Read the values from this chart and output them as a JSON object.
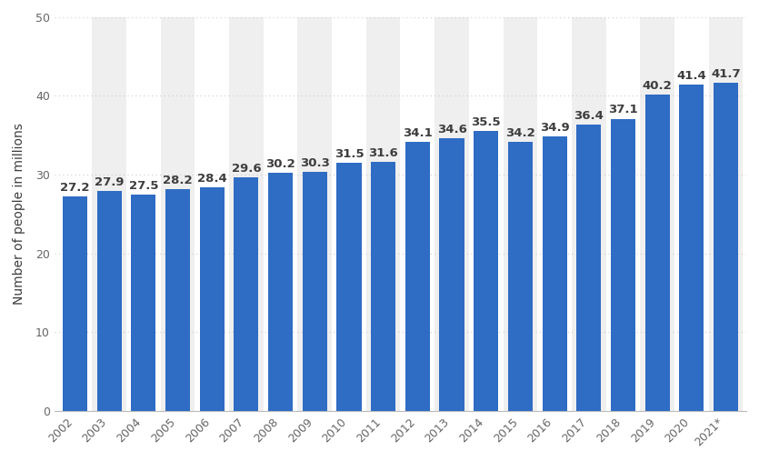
{
  "years": [
    "2002",
    "2003",
    "2004",
    "2005",
    "2006",
    "2007",
    "2008",
    "2009",
    "2010",
    "2011",
    "2012",
    "2013",
    "2014",
    "2015",
    "2016",
    "2017",
    "2018",
    "2019",
    "2020",
    "2021*"
  ],
  "values": [
    27.2,
    27.9,
    27.5,
    28.2,
    28.4,
    29.6,
    30.2,
    30.3,
    31.5,
    31.6,
    34.1,
    34.6,
    35.5,
    34.2,
    34.9,
    36.4,
    37.1,
    40.2,
    41.4,
    41.7
  ],
  "bar_color": "#2f6cc4",
  "background_color": "#ffffff",
  "plot_bg_color": "#ffffff",
  "band_color": "#efefef",
  "ylabel": "Number of people in millions",
  "ylim": [
    0,
    50
  ],
  "yticks": [
    0,
    10,
    20,
    30,
    40,
    50
  ],
  "grid_color": "#cccccc",
  "label_color": "#3d3d3d",
  "tick_label_color": "#666666",
  "bar_label_fontsize": 9.5,
  "axis_label_fontsize": 10,
  "tick_fontsize": 9,
  "bar_width": 0.72
}
